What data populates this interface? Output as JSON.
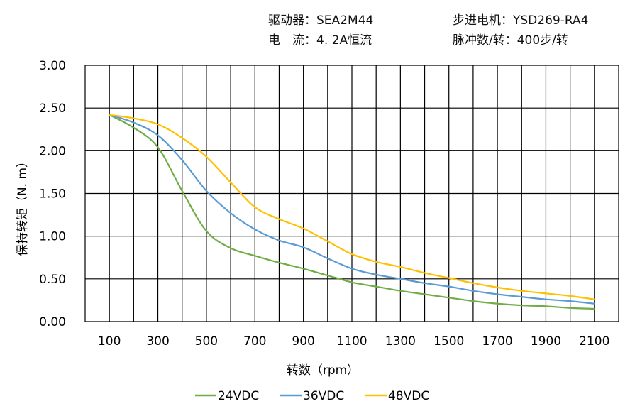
{
  "header": {
    "driver": "驱动器：SEA2M44",
    "motor": "步进电机：YSD269-RA4",
    "current": "电　流：4. 2A恒流",
    "pulses": "脉冲数/转：400步/转"
  },
  "chart_data": {
    "type": "line",
    "title": "",
    "xlabel": "转数（rpm）",
    "ylabel": "保持转矩（N. m）",
    "xlim": [
      0,
      2200
    ],
    "ylim": [
      0,
      3.0
    ],
    "grid": true,
    "legend_position": "bottom",
    "x_ticks": [
      "100",
      "300",
      "500",
      "700",
      "900",
      "1100",
      "1300",
      "1500",
      "1700",
      "1900",
      "2100"
    ],
    "y_ticks": [
      "0.00",
      "0.50",
      "1.00",
      "1.50",
      "2.00",
      "2.50",
      "3.00"
    ],
    "x": [
      100,
      200,
      300,
      400,
      500,
      600,
      700,
      800,
      900,
      1000,
      1100,
      1200,
      1300,
      1400,
      1500,
      1600,
      1700,
      1800,
      1900,
      2000,
      2100
    ],
    "series": [
      {
        "name": "24VDC",
        "color": "#70ad47",
        "values": [
          2.42,
          2.27,
          2.04,
          1.53,
          1.06,
          0.86,
          0.77,
          0.69,
          0.62,
          0.54,
          0.46,
          0.41,
          0.36,
          0.32,
          0.28,
          0.24,
          0.21,
          0.19,
          0.18,
          0.16,
          0.15
        ]
      },
      {
        "name": "36VDC",
        "color": "#5b9bd5",
        "values": [
          2.42,
          2.33,
          2.18,
          1.89,
          1.53,
          1.27,
          1.08,
          0.95,
          0.87,
          0.74,
          0.62,
          0.55,
          0.5,
          0.45,
          0.41,
          0.36,
          0.32,
          0.29,
          0.26,
          0.24,
          0.21
        ]
      },
      {
        "name": "48VDC",
        "color": "#ffc000",
        "values": [
          2.42,
          2.38,
          2.31,
          2.15,
          1.93,
          1.63,
          1.34,
          1.2,
          1.09,
          0.94,
          0.79,
          0.7,
          0.64,
          0.57,
          0.51,
          0.45,
          0.4,
          0.36,
          0.33,
          0.3,
          0.26
        ]
      }
    ]
  }
}
